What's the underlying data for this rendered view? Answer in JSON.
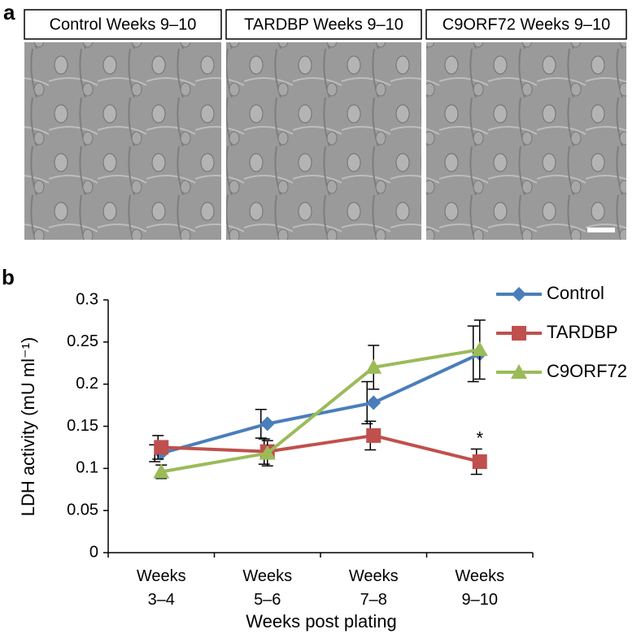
{
  "panel_a": {
    "label": "a",
    "images": [
      {
        "title": "Control Weeks 9–10"
      },
      {
        "title": "TARDBP Weeks 9–10"
      },
      {
        "title": "C9ORF72 Weeks 9–10"
      }
    ]
  },
  "chart_data": {
    "type": "line",
    "panel_label": "b",
    "y_label": "LDH activity (mU ml⁻¹)",
    "x_label": "Weeks post plating",
    "categories": [
      "Weeks 3–4",
      "Weeks 5–6",
      "Weeks 7–8",
      "Weeks 9–10"
    ],
    "ylim": [
      0,
      0.3
    ],
    "yticks": [
      0,
      0.05,
      0.1,
      0.15,
      0.2,
      0.25,
      0.3
    ],
    "legend": "top-right",
    "series": [
      {
        "name": "Control",
        "color": "#4a7ebb",
        "marker": "diamond",
        "values": [
          0.118,
          0.153,
          0.178,
          0.236
        ],
        "errors": [
          0.01,
          0.017,
          0.025,
          0.033
        ],
        "point_annotations": [
          null,
          null,
          null,
          null
        ]
      },
      {
        "name": "TARDBP",
        "color": "#c0504d",
        "marker": "square",
        "values": [
          0.125,
          0.12,
          0.139,
          0.108
        ],
        "errors": [
          0.014,
          0.015,
          0.017,
          0.015
        ],
        "point_annotations": [
          null,
          null,
          null,
          "*"
        ]
      },
      {
        "name": "C9ORF72",
        "color": "#9bbb59",
        "marker": "triangle",
        "values": [
          0.096,
          0.118,
          0.22,
          0.241
        ],
        "errors": [
          0.008,
          0.015,
          0.026,
          0.035
        ],
        "point_annotations": [
          null,
          null,
          null,
          null
        ]
      }
    ]
  }
}
